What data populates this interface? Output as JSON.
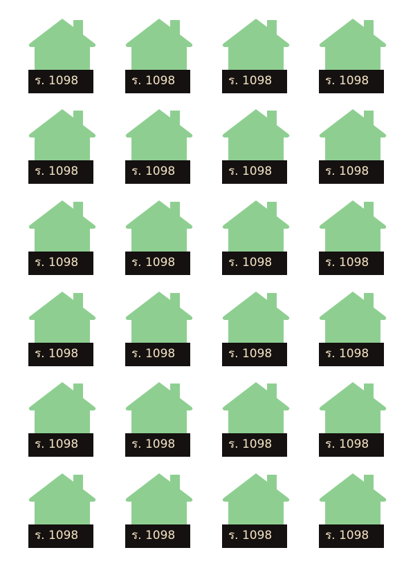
{
  "sheet": {
    "label_text": "ร. 1098",
    "columns": 4,
    "rows": 6,
    "icon": "house-icon",
    "colors": {
      "house": "#8ecf91",
      "plate": "#141110",
      "text": "#f6e3c4",
      "background": "#ffffff"
    }
  }
}
